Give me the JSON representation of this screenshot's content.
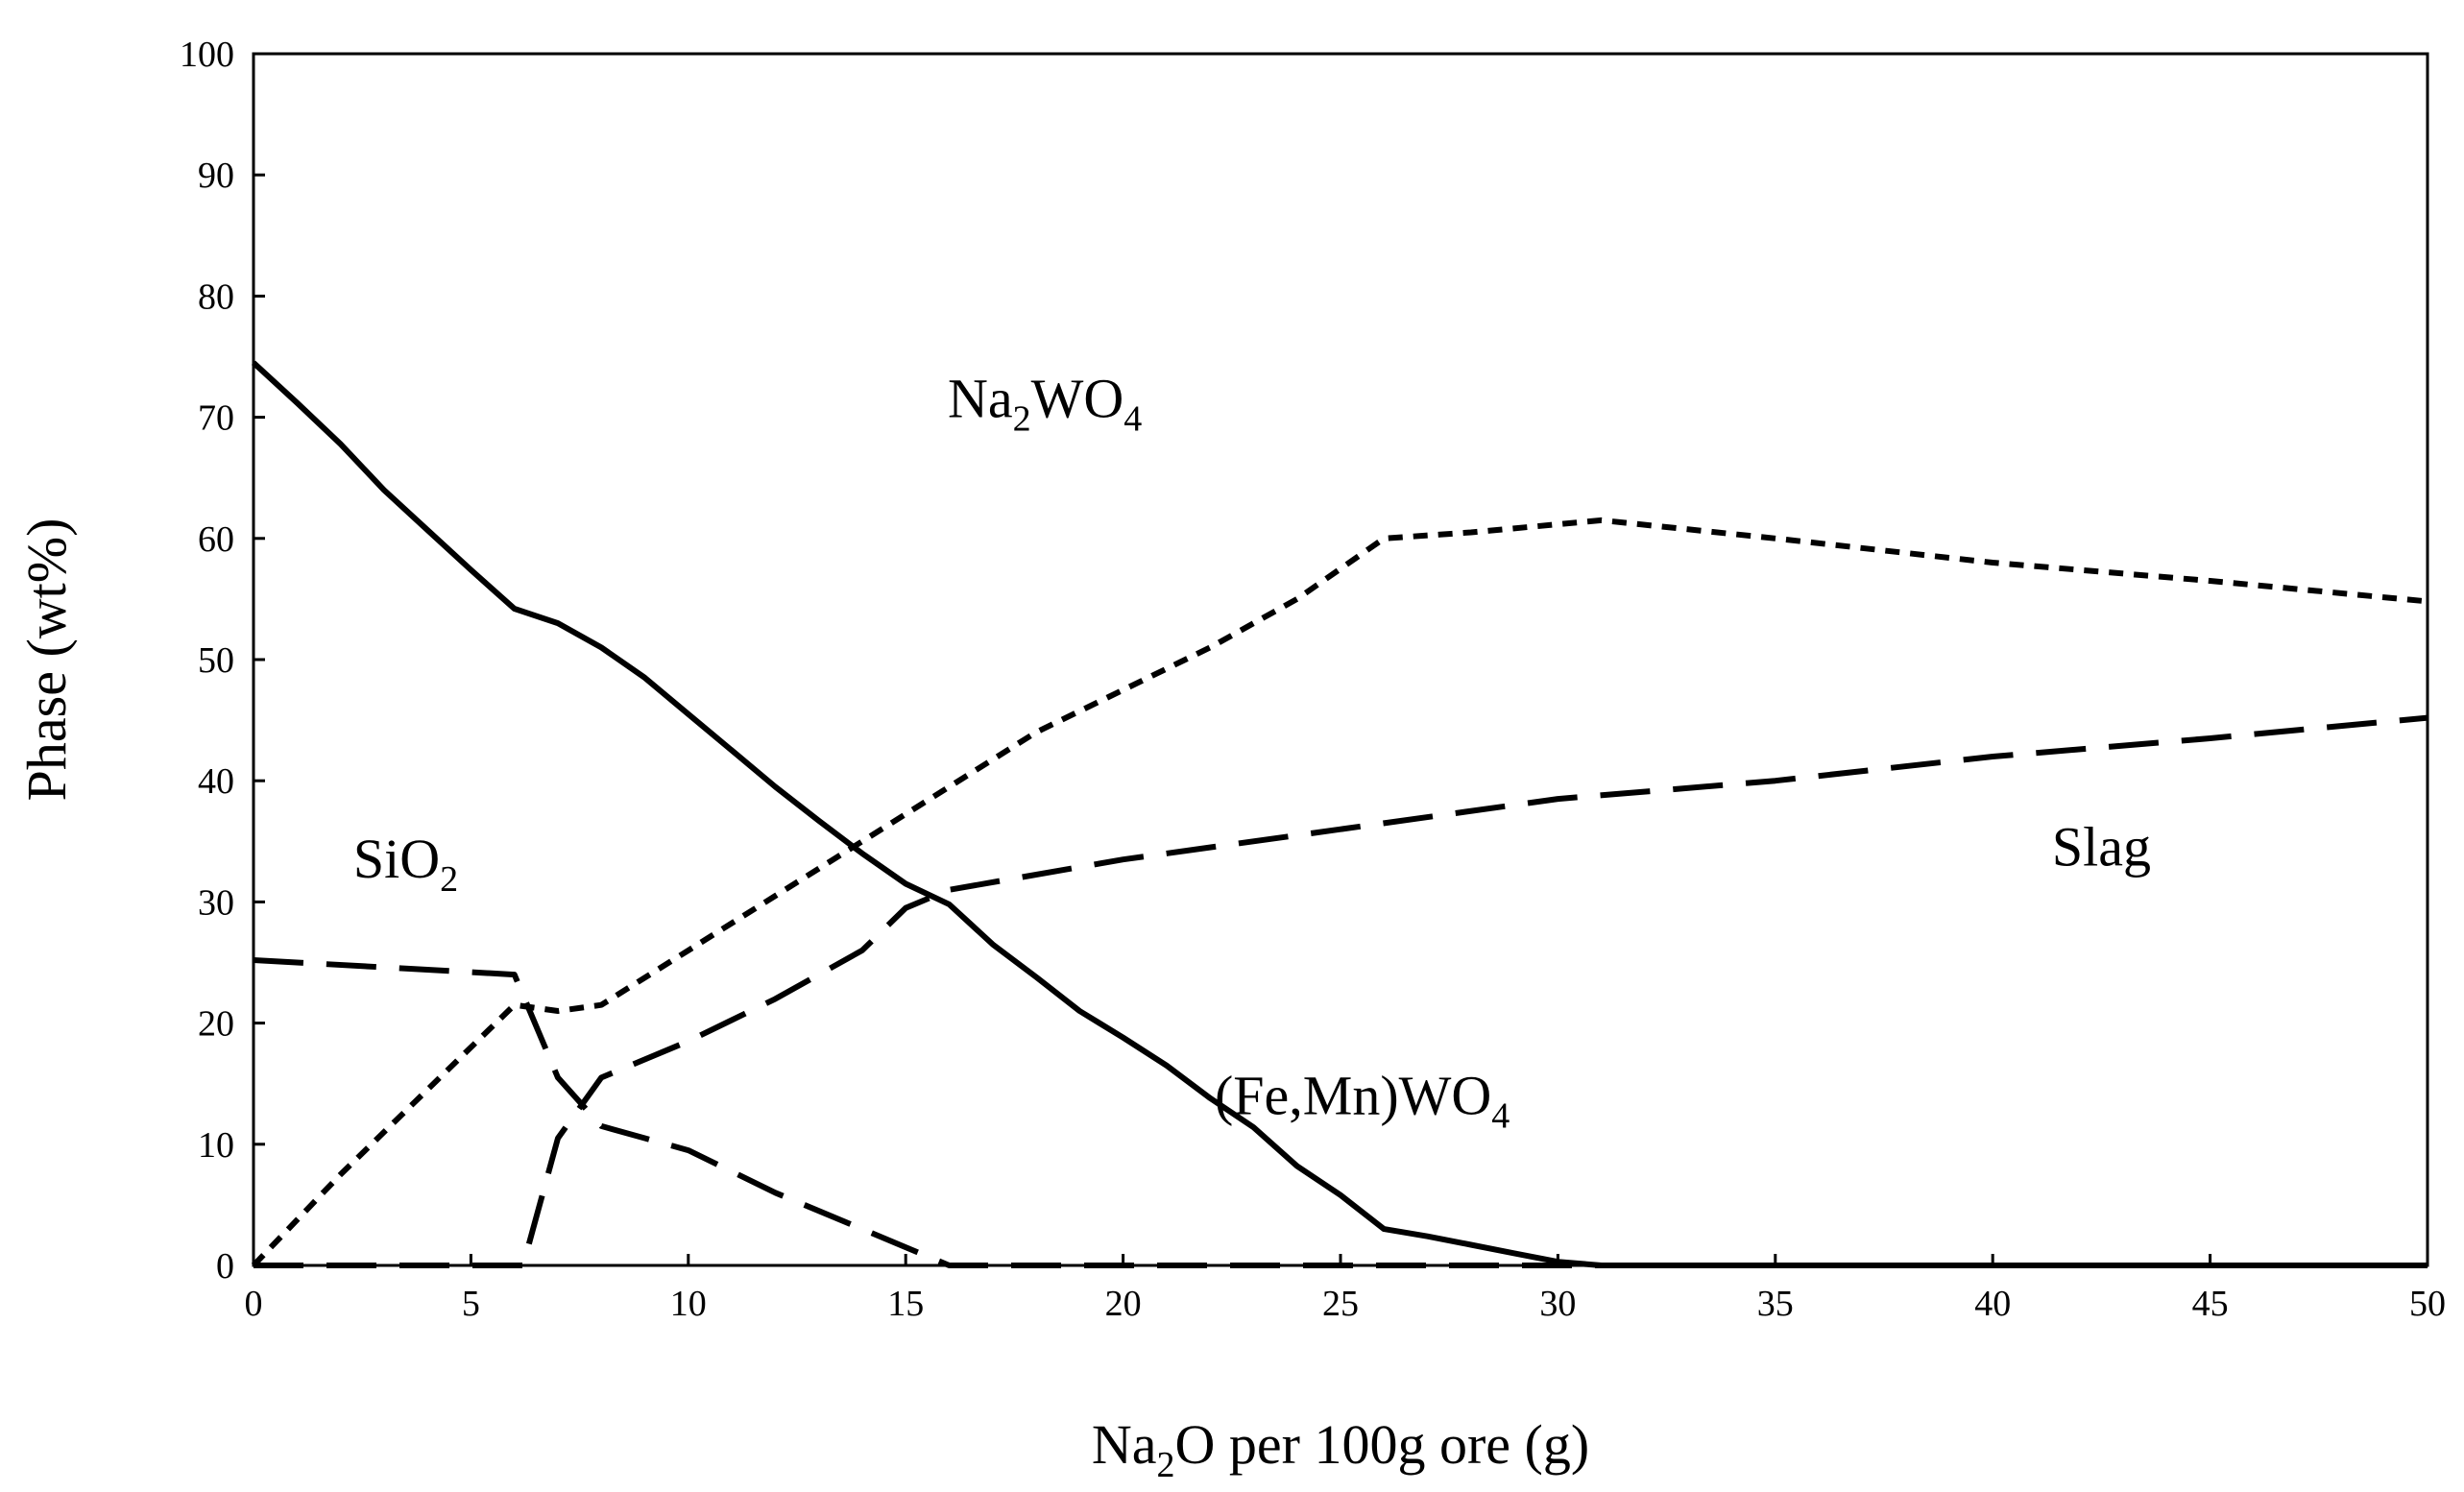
{
  "chart_data": {
    "type": "line",
    "xlabel": {
      "pre": "Na",
      "sub": "2",
      "post": "O per 100g ore (g)"
    },
    "ylabel": "Phase (wt%)",
    "xlim": [
      0,
      50
    ],
    "ylim": [
      0,
      100
    ],
    "xticks": [
      0,
      5,
      10,
      15,
      20,
      25,
      30,
      35,
      40,
      45,
      50
    ],
    "yticks": [
      0,
      10,
      20,
      30,
      40,
      50,
      60,
      70,
      80,
      90,
      100
    ],
    "grid": false,
    "legend": "none",
    "annotations": [
      {
        "id": "na2wo4",
        "parts": [
          {
            "t": "Na"
          },
          {
            "t": "2",
            "sub": true
          },
          {
            "t": "WO"
          },
          {
            "t": "4",
            "sub": true
          }
        ],
        "x": 18.2,
        "y": 70
      },
      {
        "id": "sio2",
        "parts": [
          {
            "t": "SiO"
          },
          {
            "t": "2",
            "sub": true
          }
        ],
        "x": 3.5,
        "y": 32
      },
      {
        "id": "slag",
        "parts": [
          {
            "t": "Slag"
          }
        ],
        "x": 42.5,
        "y": 33
      },
      {
        "id": "femnwo4",
        "parts": [
          {
            "t": "(Fe,Mn)WO"
          },
          {
            "t": "4",
            "sub": true
          }
        ],
        "x": 25.5,
        "y": 12.5
      }
    ],
    "series": [
      {
        "id": "femnwo4",
        "style": "solid",
        "x": [
          0,
          1,
          2,
          3,
          4,
          5,
          6,
          7,
          8,
          9,
          10,
          11,
          12,
          13,
          14,
          15,
          16,
          17,
          18,
          19,
          20,
          21,
          22,
          23,
          24,
          25,
          26,
          27,
          28,
          29,
          30,
          31,
          35,
          40,
          45,
          50
        ],
        "y": [
          74.5,
          71.2,
          67.8,
          64.0,
          60.7,
          57.4,
          54.2,
          53.0,
          51.0,
          48.5,
          45.5,
          42.5,
          39.5,
          36.7,
          34.0,
          31.5,
          29.8,
          26.5,
          23.8,
          21.0,
          18.8,
          16.5,
          13.8,
          11.4,
          8.2,
          5.8,
          3.0,
          2.4,
          1.7,
          1.0,
          0.3,
          0,
          0,
          0,
          0,
          0
        ]
      },
      {
        "id": "na2wo4",
        "style": "short-dash",
        "x": [
          0,
          2,
          4,
          6,
          7,
          8,
          10,
          12,
          14,
          16,
          18,
          20,
          22,
          24,
          26,
          28,
          31,
          35,
          40,
          45,
          50
        ],
        "y": [
          0,
          7.5,
          14.5,
          21.5,
          21.0,
          21.5,
          26.0,
          30.5,
          35.0,
          39.5,
          44.0,
          47.5,
          51.0,
          55.0,
          60.0,
          60.5,
          61.5,
          60.0,
          58.0,
          56.5,
          54.8
        ]
      },
      {
        "id": "slag",
        "style": "long-dash",
        "x": [
          0,
          6,
          6.2,
          7,
          8,
          10,
          12,
          14,
          15,
          16,
          20,
          25,
          30,
          35,
          40,
          45,
          50
        ],
        "y": [
          0,
          0,
          0,
          10.5,
          15.5,
          18.5,
          22.0,
          26.0,
          29.5,
          31.0,
          33.5,
          36.0,
          38.5,
          40.0,
          42.0,
          43.5,
          45.2
        ]
      },
      {
        "id": "sio2",
        "style": "long-dash",
        "x": [
          0,
          3,
          6,
          7,
          8,
          9,
          10,
          12,
          14,
          15,
          16,
          20,
          25,
          30,
          35,
          40,
          45,
          50
        ],
        "y": [
          25.2,
          24.6,
          24.0,
          15.5,
          11.5,
          10.5,
          9.5,
          6.0,
          3.0,
          1.5,
          0,
          0,
          0,
          0,
          0,
          0,
          0,
          0
        ]
      }
    ]
  }
}
